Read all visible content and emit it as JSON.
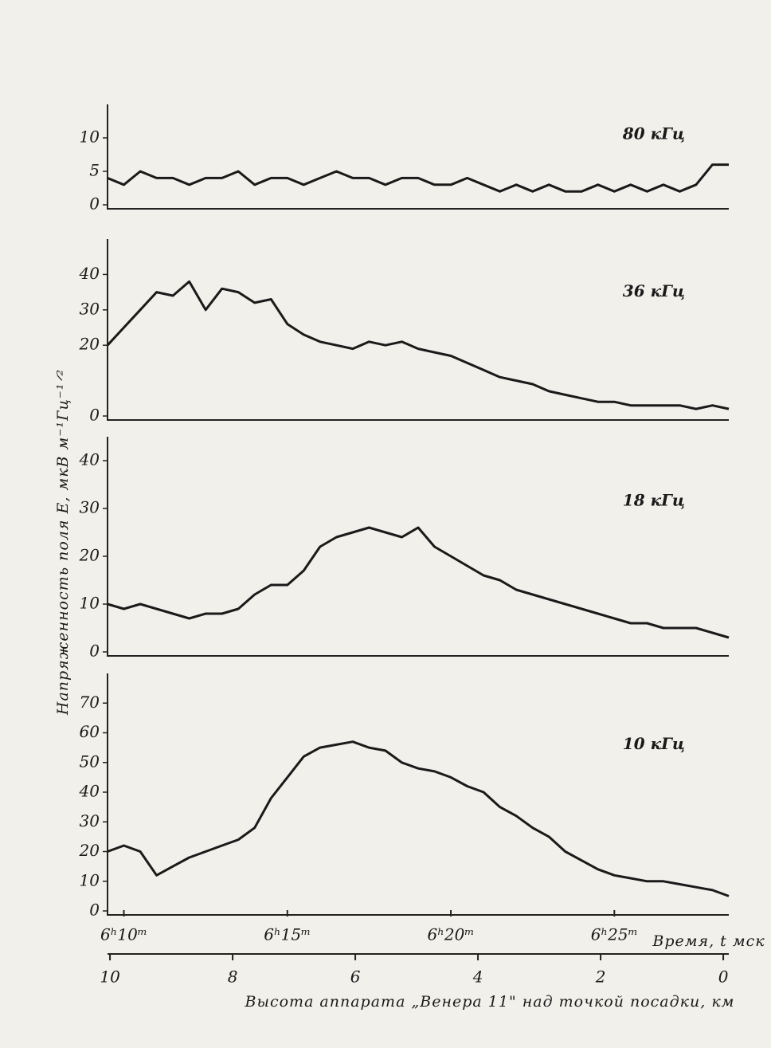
{
  "chart_data": {
    "type": "line",
    "ylabel": "Напряженность поля E, мкВ м⁻¹Гц⁻¹ᐟ²",
    "xlabel": "Время, t мск",
    "x2label": "Высота аппарата „Венера 11\" над точкой посадки, км",
    "color": "#1a1a1a",
    "xlim": [
      9.5,
      28.5
    ],
    "xticks": [
      {
        "value": 10,
        "label": "6ʰ10ᵐ"
      },
      {
        "value": 15,
        "label": "6ʰ15ᵐ"
      },
      {
        "value": 20,
        "label": "6ʰ20ᵐ"
      },
      {
        "value": 25,
        "label": "6ʰ25ᵐ"
      }
    ],
    "x2lim": [
      10.04,
      -0.09
    ],
    "x2ticks": [
      10,
      8,
      6,
      4,
      2,
      0
    ],
    "x": [
      9.5,
      10,
      10.5,
      11,
      11.5,
      12,
      12.5,
      13,
      13.5,
      14,
      14.5,
      15,
      15.5,
      16,
      16.5,
      17,
      17.5,
      18,
      18.5,
      19,
      19.5,
      20,
      20.5,
      21,
      21.5,
      22,
      22.5,
      23,
      23.5,
      24,
      24.5,
      25,
      25.5,
      26,
      26.5,
      27,
      27.5,
      28,
      28.5
    ],
    "panels": [
      {
        "label": "80 кГц",
        "ylim": [
          0,
          15
        ],
        "yticks": [
          0,
          5,
          10
        ],
        "values": [
          4,
          3,
          5,
          4,
          4,
          3,
          4,
          4,
          5,
          3,
          4,
          4,
          3,
          4,
          5,
          4,
          4,
          3,
          4,
          4,
          3,
          3,
          4,
          3,
          2,
          3,
          2,
          3,
          2,
          2,
          3,
          2,
          3,
          2,
          3,
          2,
          3,
          6,
          6
        ]
      },
      {
        "label": "36 кГц",
        "ylim": [
          0,
          50
        ],
        "yticks": [
          0,
          20,
          30,
          40
        ],
        "values": [
          20,
          25,
          30,
          35,
          34,
          38,
          30,
          36,
          35,
          32,
          33,
          26,
          23,
          21,
          20,
          19,
          21,
          20,
          21,
          19,
          18,
          17,
          15,
          13,
          11,
          10,
          9,
          7,
          6,
          5,
          4,
          4,
          3,
          3,
          3,
          3,
          2,
          3,
          2
        ]
      },
      {
        "label": "18 кГц",
        "ylim": [
          0,
          45
        ],
        "yticks": [
          0,
          10,
          20,
          30,
          40
        ],
        "values": [
          10,
          9,
          10,
          9,
          8,
          7,
          8,
          8,
          9,
          12,
          14,
          14,
          17,
          22,
          24,
          25,
          26,
          25,
          24,
          26,
          22,
          20,
          18,
          16,
          15,
          13,
          12,
          11,
          10,
          9,
          8,
          7,
          6,
          6,
          5,
          5,
          5,
          4,
          3
        ]
      },
      {
        "label": "10 кГц",
        "ylim": [
          0,
          80
        ],
        "yticks": [
          0,
          10,
          20,
          30,
          40,
          50,
          60,
          70
        ],
        "values": [
          20,
          22,
          20,
          12,
          15,
          18,
          20,
          22,
          24,
          28,
          38,
          45,
          52,
          55,
          56,
          57,
          55,
          54,
          50,
          48,
          47,
          45,
          42,
          40,
          35,
          32,
          28,
          25,
          20,
          17,
          14,
          12,
          11,
          10,
          10,
          9,
          8,
          7,
          5
        ]
      }
    ]
  }
}
